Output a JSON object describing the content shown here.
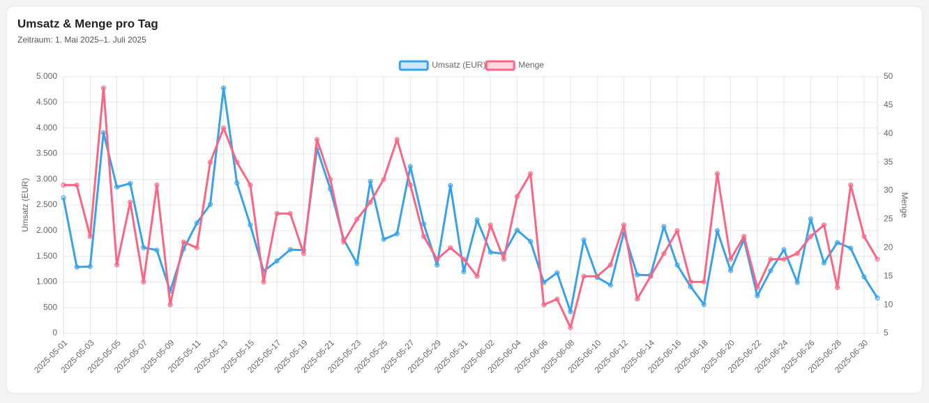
{
  "chart_data": {
    "type": "line",
    "title": "Umsatz & Menge pro Tag",
    "subtitle": "Zeitraum: 1. Mai 2025–1. Juli 2025",
    "ylabel": "Umsatz (EUR)",
    "y2label": "Menge",
    "categories": [
      "2025-05-01",
      null,
      "2025-05-03",
      null,
      "2025-05-05",
      null,
      "2025-05-07",
      null,
      "2025-05-09",
      null,
      "2025-05-11",
      null,
      "2025-05-13",
      null,
      "2025-05-15",
      null,
      "2025-05-17",
      null,
      "2025-05-19",
      null,
      "2025-05-21",
      null,
      "2025-05-23",
      null,
      "2025-05-25",
      null,
      "2025-05-27",
      null,
      "2025-05-29",
      null,
      "2025-05-31",
      null,
      "2025-06-02",
      null,
      "2025-06-04",
      null,
      "2025-06-06",
      null,
      "2025-06-08",
      null,
      "2025-06-10",
      null,
      "2025-06-12",
      null,
      "2025-06-14",
      null,
      "2025-06-16",
      null,
      "2025-06-18",
      null,
      "2025-06-20",
      null,
      "2025-06-22",
      null,
      "2025-06-24",
      null,
      "2025-06-26",
      null,
      "2025-06-28",
      null,
      "2025-06-30",
      null
    ],
    "series": [
      {
        "name": "Umsatz (EUR)",
        "color": "#36a2eb",
        "axis": "y",
        "values": [
          2640,
          1290,
          1300,
          3910,
          2850,
          2920,
          1670,
          1620,
          820,
          1640,
          2150,
          2510,
          4780,
          2930,
          2110,
          1210,
          1410,
          1630,
          1620,
          3600,
          2810,
          1830,
          1360,
          2960,
          1830,
          1940,
          3250,
          2130,
          1330,
          2880,
          1200,
          2210,
          1580,
          1550,
          2010,
          1790,
          990,
          1180,
          420,
          1820,
          1090,
          940,
          1970,
          1140,
          1130,
          2080,
          1330,
          910,
          560,
          2000,
          1220,
          1830,
          730,
          1220,
          1630,
          990,
          2230,
          1370,
          1770,
          1660,
          1100,
          690
        ]
      },
      {
        "name": "Menge",
        "color": "#ff6384",
        "axis": "y2",
        "values": [
          31,
          31,
          22,
          48,
          17,
          28,
          14,
          31,
          10,
          21,
          20,
          35,
          41,
          35,
          31,
          14,
          26,
          26,
          19,
          39,
          32,
          21,
          25,
          28,
          32,
          39,
          31,
          22,
          18,
          20,
          18,
          15,
          24,
          18,
          29,
          33,
          10,
          11,
          6,
          15,
          15,
          17,
          24,
          11,
          15,
          19,
          23,
          14,
          14,
          33,
          18,
          22,
          13,
          18,
          18,
          19,
          22,
          24,
          13,
          31,
          22,
          18
        ]
      }
    ],
    "ylim": [
      0,
      5000
    ],
    "yticks": [
      0,
      {
        "value": 500,
        "label": "500"
      },
      {
        "value": 1000,
        "label": "1.000"
      },
      {
        "value": 1500,
        "label": "1.500"
      },
      {
        "value": 2000,
        "label": "2.000"
      },
      {
        "value": 2500,
        "label": "2.500"
      },
      {
        "value": 3000,
        "label": "3.000"
      },
      {
        "value": 3500,
        "label": "3.500"
      },
      {
        "value": 4000,
        "label": "4.000"
      },
      {
        "value": 4500,
        "label": "4.500"
      },
      {
        "value": 5000,
        "label": "5.000"
      }
    ],
    "y2lim": [
      5,
      50
    ],
    "y2ticks": [
      5,
      10,
      15,
      20,
      25,
      30,
      35,
      40,
      45,
      50
    ],
    "grid": true,
    "legend": "top"
  }
}
